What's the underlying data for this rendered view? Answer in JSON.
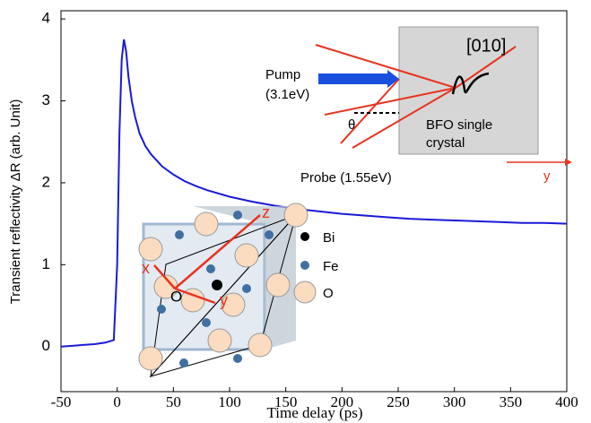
{
  "chart_data": {
    "type": "line",
    "xlabel": "Time delay (ps)",
    "ylabel": "Transient reflectivity ΔR (arb. Unit)",
    "xlim": [
      -50,
      400
    ],
    "xticks": [
      -50,
      0,
      50,
      100,
      150,
      200,
      250,
      300,
      350,
      400
    ],
    "ylim": [
      -0.55,
      4.1
    ],
    "yticks": [
      0,
      1,
      2,
      3,
      4
    ],
    "grid": false,
    "series": [
      {
        "color": "#1a1ad6",
        "x": [
          -50,
          -40,
          -30,
          -20,
          -10,
          -3,
          0,
          2,
          4,
          6,
          8,
          10,
          13,
          16,
          20,
          25,
          30,
          40,
          50,
          60,
          70,
          80,
          100,
          120,
          140,
          160,
          180,
          200,
          220,
          240,
          260,
          280,
          300,
          320,
          340,
          360,
          380,
          400
        ],
        "values": [
          0.0,
          0.01,
          0.02,
          0.03,
          0.05,
          0.08,
          1.0,
          2.6,
          3.5,
          3.75,
          3.6,
          3.3,
          3.0,
          2.8,
          2.6,
          2.45,
          2.35,
          2.2,
          2.1,
          2.02,
          1.96,
          1.91,
          1.83,
          1.77,
          1.72,
          1.68,
          1.65,
          1.62,
          1.6,
          1.58,
          1.56,
          1.55,
          1.54,
          1.53,
          1.52,
          1.51,
          1.51,
          1.5
        ]
      }
    ],
    "annotations": [
      "[010]",
      "Pump",
      "(3.1eV)",
      "θ",
      "BFO single",
      "crystal",
      "Probe (1.55eV)",
      "y",
      "z",
      "x",
      "O",
      "y",
      "Bi",
      "Fe",
      "O"
    ]
  }
}
